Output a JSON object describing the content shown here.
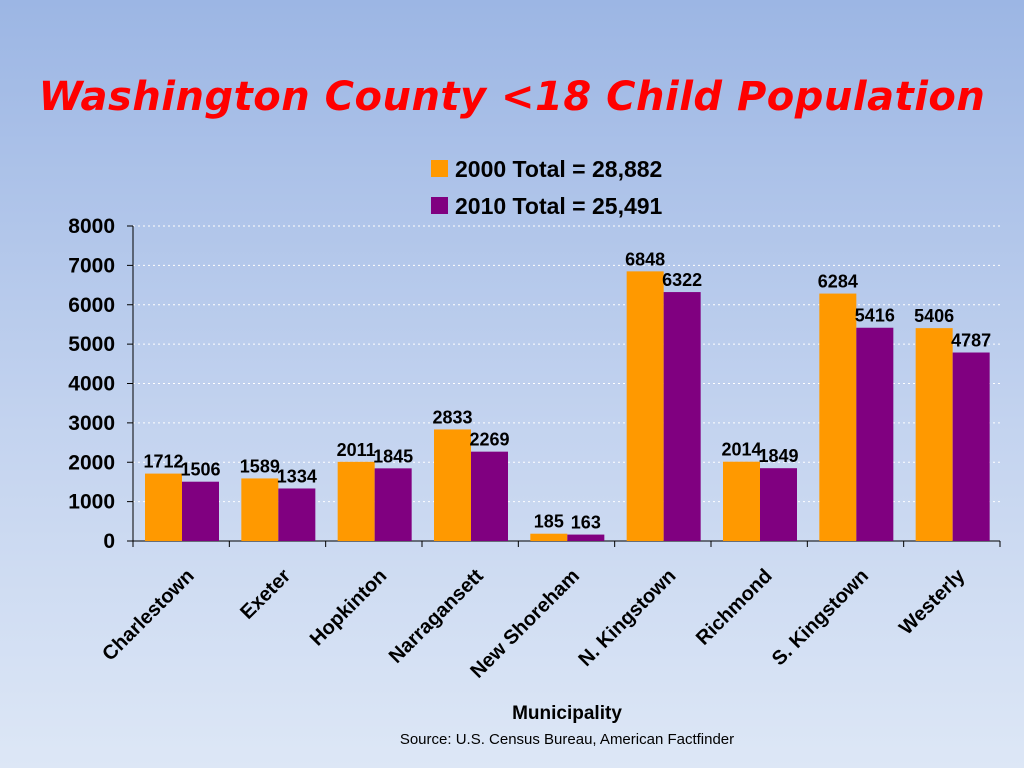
{
  "chart_data": {
    "type": "bar",
    "title": "Washington County <18 Child Population",
    "xlabel": "Municipality",
    "source": "Source:  U.S. Census Bureau, American Factfinder",
    "categories": [
      "Charlestown",
      "Exeter",
      "Hopkinton",
      "Narragansett",
      "New Shoreham",
      "N. Kingstown",
      "Richmond",
      "S. Kingstown",
      "Westerly"
    ],
    "series": [
      {
        "name": "2000 Total = 28,882",
        "color": "#ff9900",
        "values": [
          1712,
          1589,
          2011,
          2833,
          185,
          6848,
          2014,
          6284,
          5406
        ]
      },
      {
        "name": "2010 Total = 25,491",
        "color": "#800080",
        "values": [
          1506,
          1334,
          1845,
          2269,
          163,
          6322,
          1849,
          5416,
          4787
        ]
      }
    ],
    "ylim": [
      0,
      8000
    ],
    "yticks": [
      0,
      1000,
      2000,
      3000,
      4000,
      5000,
      6000,
      7000,
      8000
    ],
    "grid": true,
    "legend": "top"
  }
}
